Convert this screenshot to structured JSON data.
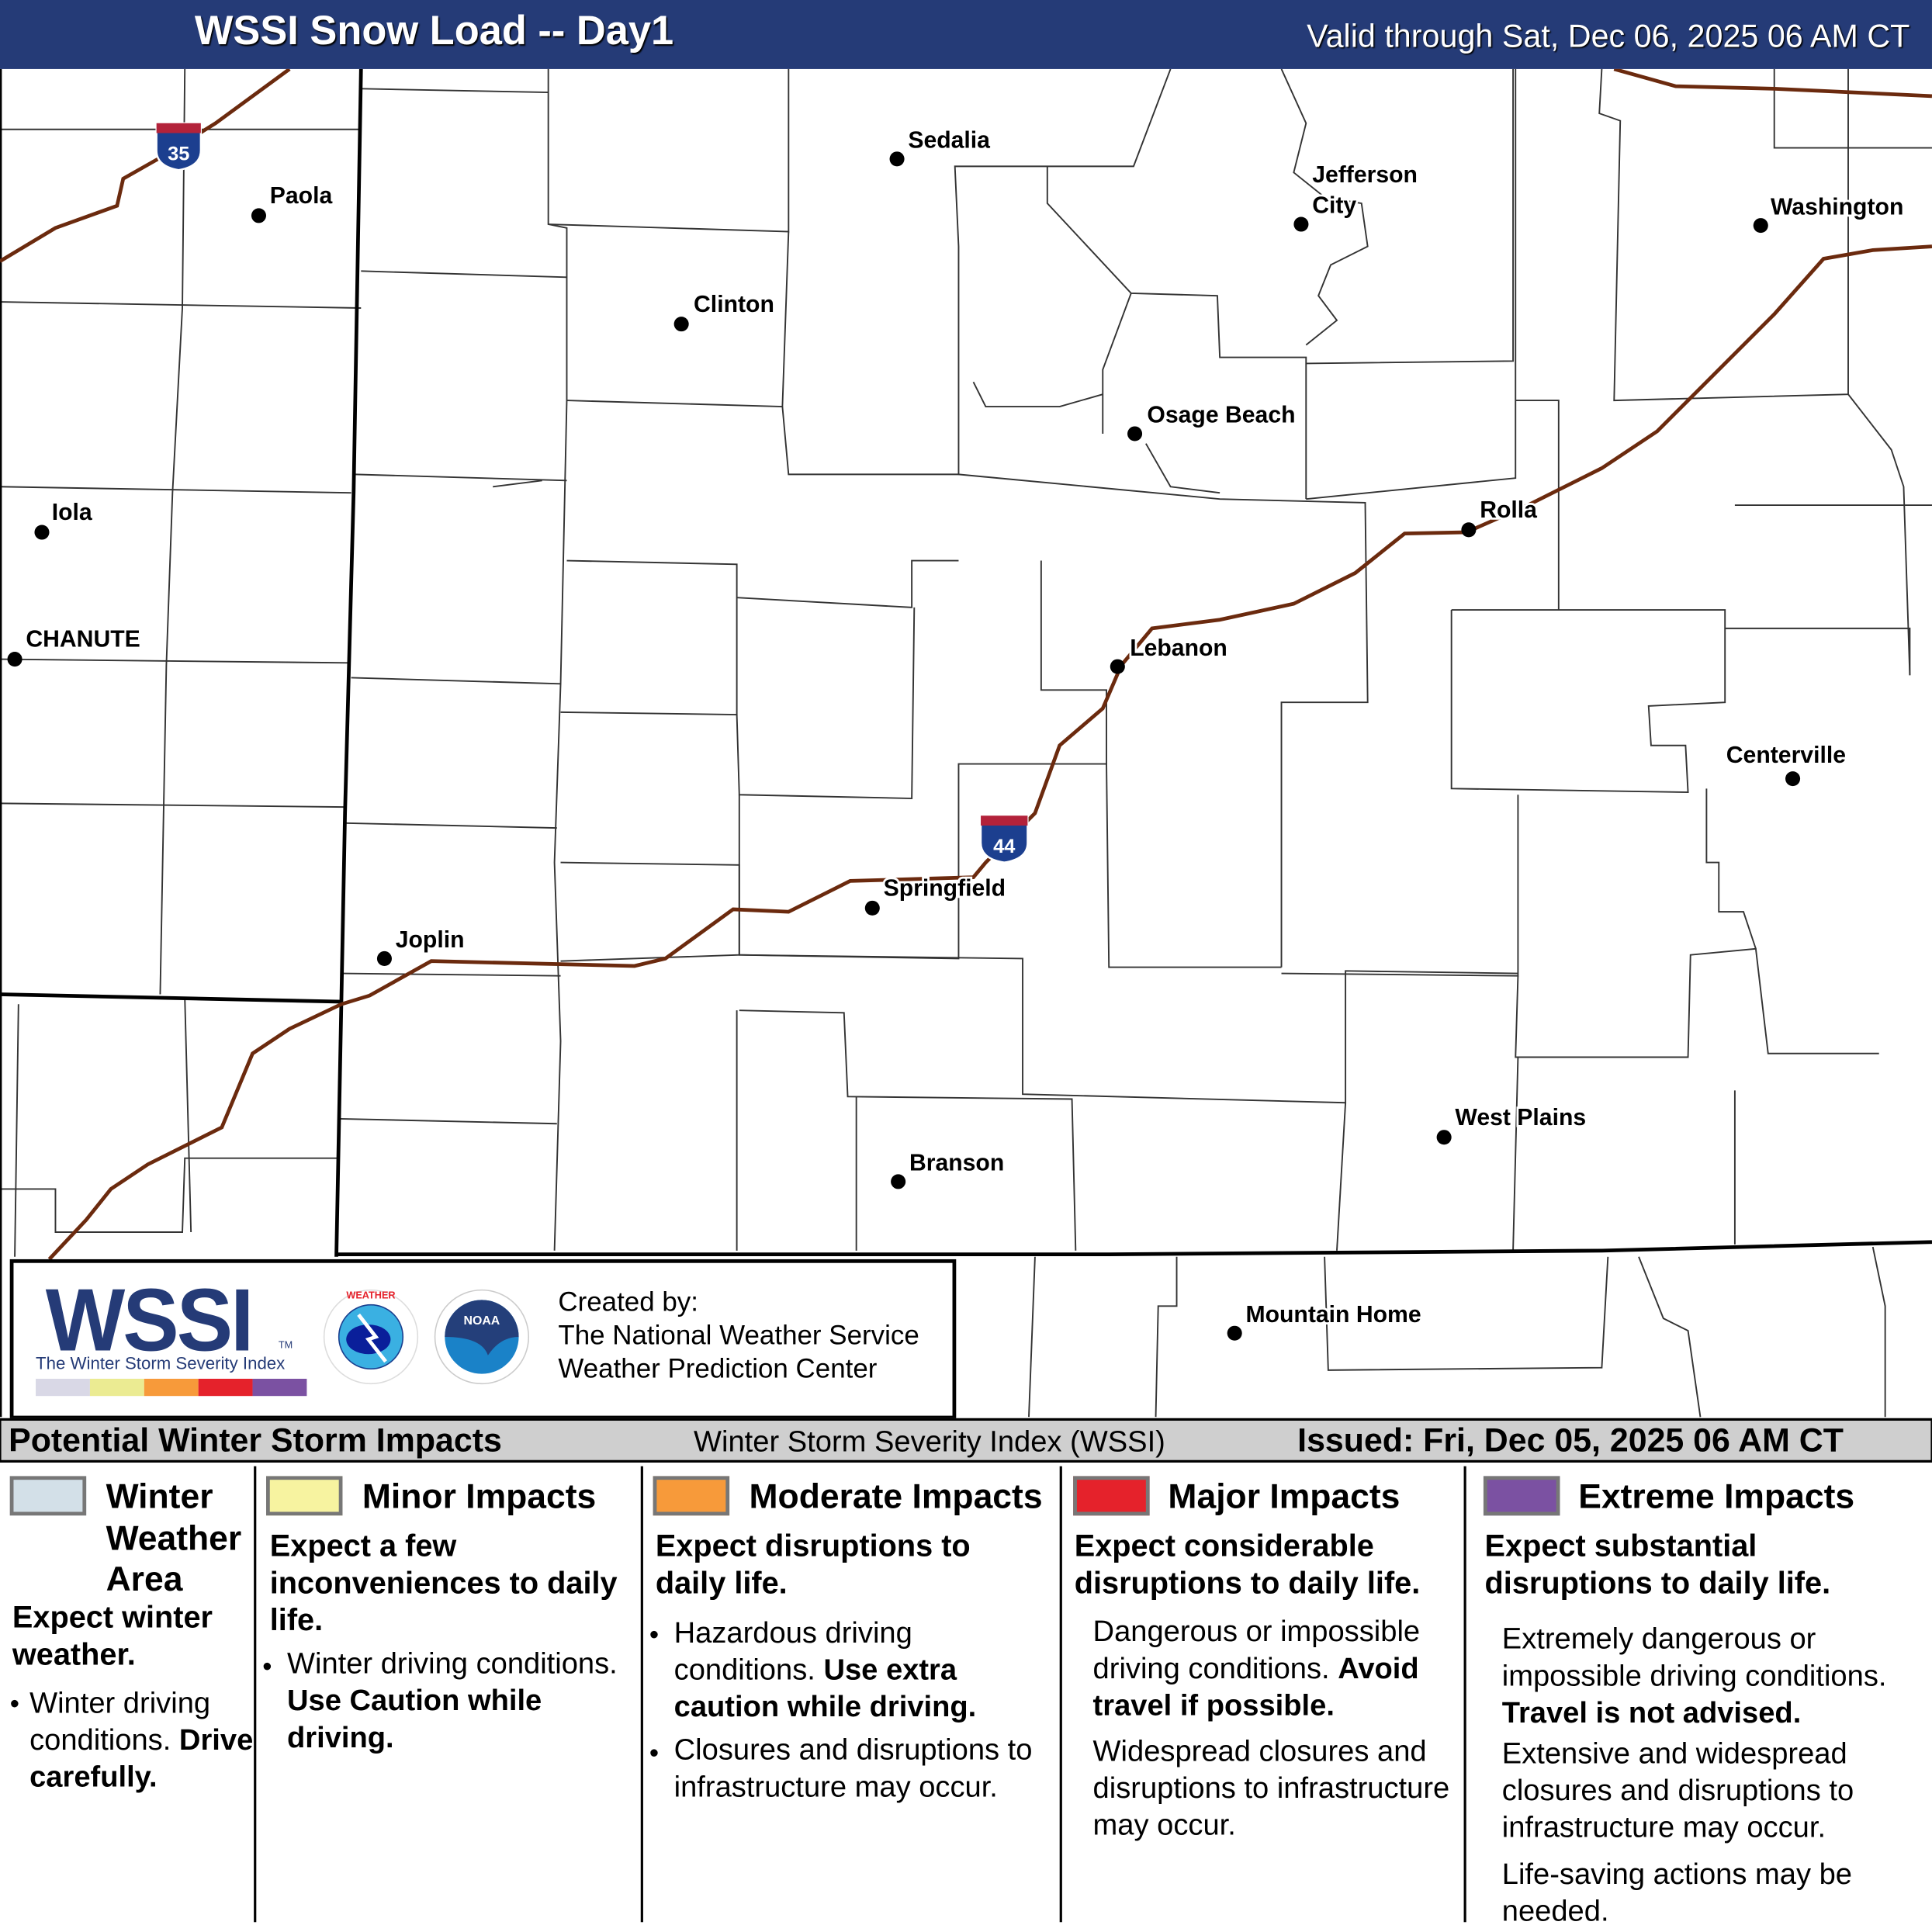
{
  "header": {
    "title": "WSSI Snow Load -- Day1",
    "valid": "Valid through Sat, Dec 06, 2025 06 AM CT"
  },
  "map": {
    "interstates": [
      {
        "label": "35"
      },
      {
        "label": "44"
      }
    ],
    "cities": [
      "Sedalia",
      "Paola",
      "Jefferson",
      "City",
      "Washington",
      "Clinton",
      "Osage Beach",
      "Iola",
      "Rolla",
      "CHANUTE",
      "Lebanon",
      "Centerville",
      "Springfield",
      "Joplin",
      "West Plains",
      "Branson",
      "Mountain Home"
    ],
    "colors": {
      "state_border": "#000000",
      "county_border": "#333333",
      "interstate": "#6b2a0e",
      "shield_blue": "#1c3f8f",
      "shield_red": "#b3223a"
    }
  },
  "logo": {
    "wssi": "WSSI",
    "tm": "TM",
    "subtitle": "The Winter Storm Severity Index",
    "created_by": "Created by:",
    "org1": "The National Weather Service",
    "org2": "Weather Prediction Center",
    "scale_colors": [
      "#d9d8e6",
      "#ebeb92",
      "#f79a3a",
      "#e5222b",
      "#7b51a2"
    ]
  },
  "bar": {
    "left": "Potential Winter Storm Impacts",
    "center": "Winter Storm Severity Index (WSSI)",
    "right": "Issued: Fri, Dec 05, 2025 06 AM CT"
  },
  "legend": [
    {
      "color": "#d3e0e8",
      "title1": "Winter",
      "title2": "Weather",
      "title3": "Area",
      "lead": "Expect winter weather.",
      "b1": "Winter driving conditions.",
      "b1bold": "Drive carefully."
    },
    {
      "color": "#f7f3a0",
      "title": "Minor Impacts",
      "lead": "Expect a few inconveniences to daily life.",
      "b1": "Winter driving conditions.",
      "b1bold": "Use Caution while driving."
    },
    {
      "color": "#f79a3a",
      "title": "Moderate Impacts",
      "lead": "Expect disruptions to daily life.",
      "b1": "Hazardous driving conditions.",
      "b1bold": "Use extra caution while driving.",
      "b2": "Closures and disruptions to infrastructure may occur."
    },
    {
      "color": "#e5222b",
      "title": "Major Impacts",
      "lead": "Expect considerable disruptions to daily life.",
      "p1": "Dangerous or impossible driving conditions.",
      "p1bold": "Avoid travel if possible.",
      "p2": "Widespread closures and disruptions to infrastructure may occur."
    },
    {
      "color": "#7b51a2",
      "title": "Extreme Impacts",
      "lead": "Expect substantial disruptions to daily life.",
      "p1": "Extremely dangerous or impossible driving conditions.",
      "p1bold": "Travel is not advised.",
      "p2": "Extensive and widespread closures and disruptions to infrastructure may occur.",
      "p3": "Life-saving actions may be needed."
    }
  ]
}
